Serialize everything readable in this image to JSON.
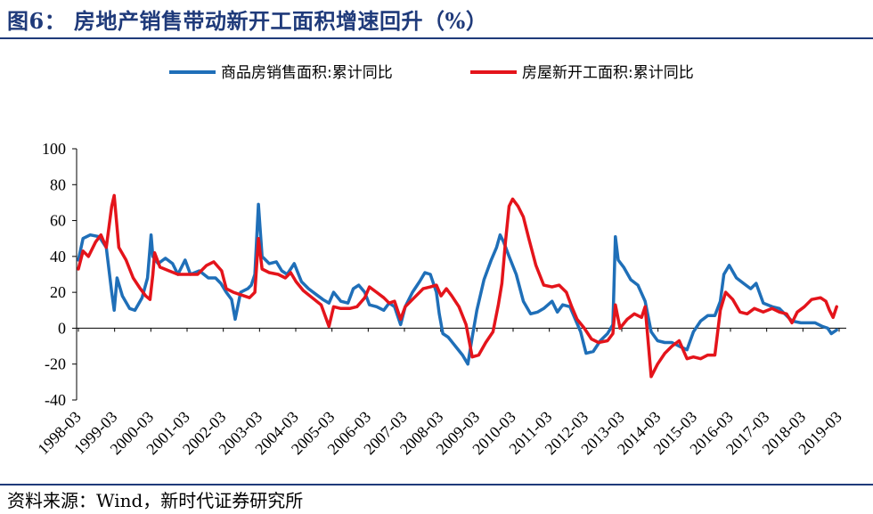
{
  "title": "图6： 房地产销售带动新开工面积增速回升（%）",
  "source": "资料来源：Wind，新时代证券研究所",
  "chart_data": {
    "type": "line",
    "title": "房地产销售带动新开工面积增速回升（%）",
    "xlabel": "",
    "ylabel": "",
    "ylim": [
      -40,
      100
    ],
    "yticks": [
      "100",
      "80",
      "60",
      "40",
      "20",
      "0",
      "-20",
      "-40"
    ],
    "xticks": [
      "1998-03",
      "1999-03",
      "2000-03",
      "2001-03",
      "2002-03",
      "2003-03",
      "2004-03",
      "2005-03",
      "2006-03",
      "2007-03",
      "2008-03",
      "2009-03",
      "2010-03",
      "2011-03",
      "2012-03",
      "2013-03",
      "2014-03",
      "2015-03",
      "2016-03",
      "2017-03",
      "2018-03",
      "2019-03"
    ],
    "x_range": [
      1998.17,
      2019.42
    ],
    "legend_position": "top",
    "series": [
      {
        "name": "商品房销售面积:累计同比",
        "color": "#1f6fb8",
        "points": [
          [
            1998.17,
            38
          ],
          [
            1998.3,
            50
          ],
          [
            1998.5,
            52
          ],
          [
            1998.75,
            51
          ],
          [
            1998.95,
            45
          ],
          [
            1999.1,
            20
          ],
          [
            1999.17,
            10
          ],
          [
            1999.25,
            28
          ],
          [
            1999.4,
            18
          ],
          [
            1999.6,
            11
          ],
          [
            1999.75,
            10
          ],
          [
            1999.95,
            17
          ],
          [
            2000.1,
            28
          ],
          [
            2000.2,
            52
          ],
          [
            2000.25,
            40
          ],
          [
            2000.4,
            36
          ],
          [
            2000.6,
            39
          ],
          [
            2000.8,
            36
          ],
          [
            2000.95,
            30
          ],
          [
            2001.15,
            38
          ],
          [
            2001.3,
            30
          ],
          [
            2001.55,
            32
          ],
          [
            2001.8,
            28
          ],
          [
            2002.0,
            28
          ],
          [
            2002.15,
            25
          ],
          [
            2002.3,
            20
          ],
          [
            2002.45,
            16
          ],
          [
            2002.55,
            5
          ],
          [
            2002.7,
            20
          ],
          [
            2002.9,
            22
          ],
          [
            2003.0,
            24
          ],
          [
            2003.1,
            30
          ],
          [
            2003.2,
            69
          ],
          [
            2003.3,
            40
          ],
          [
            2003.5,
            36
          ],
          [
            2003.7,
            37
          ],
          [
            2003.85,
            32
          ],
          [
            2004.0,
            30
          ],
          [
            2004.2,
            36
          ],
          [
            2004.4,
            26
          ],
          [
            2004.6,
            22
          ],
          [
            2004.8,
            19
          ],
          [
            2005.0,
            16
          ],
          [
            2005.17,
            14
          ],
          [
            2005.3,
            20
          ],
          [
            2005.5,
            15
          ],
          [
            2005.7,
            14
          ],
          [
            2005.85,
            22
          ],
          [
            2006.0,
            24
          ],
          [
            2006.17,
            20
          ],
          [
            2006.3,
            13
          ],
          [
            2006.5,
            12
          ],
          [
            2006.7,
            10
          ],
          [
            2006.85,
            14
          ],
          [
            2007.0,
            12
          ],
          [
            2007.17,
            2
          ],
          [
            2007.3,
            12
          ],
          [
            2007.5,
            20
          ],
          [
            2007.7,
            26
          ],
          [
            2007.85,
            31
          ],
          [
            2008.0,
            30
          ],
          [
            2008.17,
            20
          ],
          [
            2008.25,
            8
          ],
          [
            2008.35,
            -3
          ],
          [
            2008.5,
            -5
          ],
          [
            2008.7,
            -10
          ],
          [
            2008.9,
            -15
          ],
          [
            2009.05,
            -20
          ],
          [
            2009.17,
            -5
          ],
          [
            2009.3,
            10
          ],
          [
            2009.5,
            27
          ],
          [
            2009.7,
            38
          ],
          [
            2009.85,
            45
          ],
          [
            2009.95,
            52
          ],
          [
            2010.05,
            48
          ],
          [
            2010.2,
            40
          ],
          [
            2010.4,
            30
          ],
          [
            2010.6,
            15
          ],
          [
            2010.8,
            8
          ],
          [
            2011.0,
            9
          ],
          [
            2011.17,
            11
          ],
          [
            2011.4,
            15
          ],
          [
            2011.55,
            9
          ],
          [
            2011.7,
            13
          ],
          [
            2011.9,
            12
          ],
          [
            2012.05,
            5
          ],
          [
            2012.2,
            -2
          ],
          [
            2012.35,
            -14
          ],
          [
            2012.55,
            -13
          ],
          [
            2012.75,
            -7
          ],
          [
            2012.95,
            -3
          ],
          [
            2013.1,
            2
          ],
          [
            2013.17,
            51
          ],
          [
            2013.25,
            38
          ],
          [
            2013.4,
            34
          ],
          [
            2013.6,
            27
          ],
          [
            2013.8,
            24
          ],
          [
            2014.0,
            15
          ],
          [
            2014.17,
            -2
          ],
          [
            2014.35,
            -7
          ],
          [
            2014.55,
            -8
          ],
          [
            2014.75,
            -8
          ],
          [
            2014.95,
            -10
          ],
          [
            2015.17,
            -12
          ],
          [
            2015.35,
            -2
          ],
          [
            2015.55,
            4
          ],
          [
            2015.75,
            7
          ],
          [
            2015.95,
            7
          ],
          [
            2016.1,
            15
          ],
          [
            2016.2,
            30
          ],
          [
            2016.35,
            35
          ],
          [
            2016.55,
            28
          ],
          [
            2016.75,
            25
          ],
          [
            2016.95,
            22
          ],
          [
            2017.1,
            25
          ],
          [
            2017.3,
            14
          ],
          [
            2017.55,
            12
          ],
          [
            2017.75,
            11
          ],
          [
            2017.95,
            7
          ],
          [
            2018.1,
            4
          ],
          [
            2018.35,
            3
          ],
          [
            2018.55,
            3
          ],
          [
            2018.75,
            3
          ],
          [
            2018.95,
            1
          ],
          [
            2019.1,
            0
          ],
          [
            2019.2,
            -3
          ],
          [
            2019.35,
            -1
          ]
        ]
      },
      {
        "name": "房屋新开工面积:累计同比",
        "color": "#e4141b",
        "points": [
          [
            1998.17,
            33
          ],
          [
            1998.3,
            43
          ],
          [
            1998.45,
            40
          ],
          [
            1998.65,
            48
          ],
          [
            1998.8,
            52
          ],
          [
            1998.95,
            45
          ],
          [
            1999.1,
            68
          ],
          [
            1999.17,
            74
          ],
          [
            1999.3,
            45
          ],
          [
            1999.5,
            38
          ],
          [
            1999.7,
            28
          ],
          [
            1999.9,
            22
          ],
          [
            2000.05,
            18
          ],
          [
            2000.17,
            16
          ],
          [
            2000.25,
            30
          ],
          [
            2000.3,
            42
          ],
          [
            2000.45,
            34
          ],
          [
            2000.7,
            32
          ],
          [
            2000.95,
            30
          ],
          [
            2001.2,
            30
          ],
          [
            2001.5,
            30
          ],
          [
            2001.75,
            35
          ],
          [
            2001.95,
            37
          ],
          [
            2002.17,
            32
          ],
          [
            2002.3,
            22
          ],
          [
            2002.5,
            20
          ],
          [
            2002.8,
            18
          ],
          [
            2002.95,
            17
          ],
          [
            2003.1,
            20
          ],
          [
            2003.2,
            50
          ],
          [
            2003.3,
            33
          ],
          [
            2003.5,
            31
          ],
          [
            2003.75,
            30
          ],
          [
            2003.95,
            28
          ],
          [
            2004.1,
            31
          ],
          [
            2004.25,
            26
          ],
          [
            2004.45,
            21
          ],
          [
            2004.7,
            17
          ],
          [
            2004.95,
            13
          ],
          [
            2005.17,
            1
          ],
          [
            2005.3,
            12
          ],
          [
            2005.5,
            11
          ],
          [
            2005.75,
            11
          ],
          [
            2005.95,
            12
          ],
          [
            2006.17,
            17
          ],
          [
            2006.3,
            23
          ],
          [
            2006.5,
            20
          ],
          [
            2006.7,
            17
          ],
          [
            2006.85,
            14
          ],
          [
            2007.0,
            15
          ],
          [
            2007.17,
            5
          ],
          [
            2007.3,
            12
          ],
          [
            2007.55,
            17
          ],
          [
            2007.8,
            22
          ],
          [
            2008.0,
            23
          ],
          [
            2008.17,
            24
          ],
          [
            2008.3,
            18
          ],
          [
            2008.45,
            22
          ],
          [
            2008.6,
            18
          ],
          [
            2008.8,
            12
          ],
          [
            2009.0,
            2
          ],
          [
            2009.17,
            -16
          ],
          [
            2009.35,
            -15
          ],
          [
            2009.55,
            -8
          ],
          [
            2009.75,
            -2
          ],
          [
            2009.9,
            13
          ],
          [
            2010.0,
            25
          ],
          [
            2010.1,
            48
          ],
          [
            2010.2,
            68
          ],
          [
            2010.3,
            72
          ],
          [
            2010.45,
            68
          ],
          [
            2010.6,
            62
          ],
          [
            2010.75,
            50
          ],
          [
            2010.95,
            35
          ],
          [
            2011.17,
            24
          ],
          [
            2011.4,
            23
          ],
          [
            2011.6,
            24
          ],
          [
            2011.8,
            20
          ],
          [
            2011.95,
            12
          ],
          [
            2012.1,
            5
          ],
          [
            2012.3,
            0
          ],
          [
            2012.5,
            -6
          ],
          [
            2012.7,
            -8
          ],
          [
            2012.95,
            -7
          ],
          [
            2013.1,
            -3
          ],
          [
            2013.17,
            13
          ],
          [
            2013.3,
            0
          ],
          [
            2013.5,
            5
          ],
          [
            2013.7,
            8
          ],
          [
            2013.9,
            6
          ],
          [
            2014.0,
            12
          ],
          [
            2014.17,
            -27
          ],
          [
            2014.35,
            -20
          ],
          [
            2014.55,
            -14
          ],
          [
            2014.75,
            -10
          ],
          [
            2014.95,
            -7
          ],
          [
            2015.17,
            -17
          ],
          [
            2015.35,
            -16
          ],
          [
            2015.55,
            -17
          ],
          [
            2015.75,
            -15
          ],
          [
            2015.95,
            -15
          ],
          [
            2016.1,
            10
          ],
          [
            2016.25,
            20
          ],
          [
            2016.45,
            16
          ],
          [
            2016.65,
            9
          ],
          [
            2016.85,
            8
          ],
          [
            2017.05,
            11
          ],
          [
            2017.3,
            9
          ],
          [
            2017.55,
            11
          ],
          [
            2017.75,
            9
          ],
          [
            2017.95,
            8
          ],
          [
            2018.1,
            3
          ],
          [
            2018.25,
            9
          ],
          [
            2018.45,
            12
          ],
          [
            2018.65,
            16
          ],
          [
            2018.9,
            17
          ],
          [
            2019.05,
            15
          ],
          [
            2019.15,
            10
          ],
          [
            2019.25,
            6
          ],
          [
            2019.35,
            12
          ]
        ]
      }
    ]
  }
}
